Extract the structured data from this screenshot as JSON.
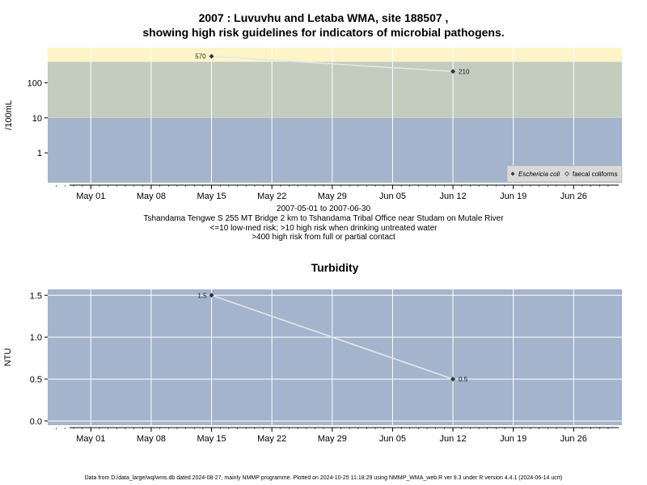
{
  "title_line1": "2007 : Luvuvhu and Letaba WMA, site 188507 ,",
  "title_line2": "showing high risk guidelines for indicators of microbial pathogens.",
  "caption": {
    "range": "2007-05-01 to 2007-06-30",
    "site": "Tshandama Tengwe S 255 MT Bridge 2 km to Tshandama Tribal Office near Studam on Mutale River",
    "risk1": "<=10 low-med risk; >10 high risk when drinking untreated water",
    "risk2": ">400 high risk from full or partial contact"
  },
  "footer": "Data from D:/data_large/wq/wms.db dated 2024-08-27, mainly NMMP programme. Plotted on 2024-10-25 11:18:29 using NMMP_WMA_web.R ver 9.3 under R version 4.4.1 (2024-06-14 ucrt)",
  "colors": {
    "band_low": "#a4b4cc",
    "band_mid": "#c4ccc0",
    "band_high": "#fdf5c8",
    "grid": "#ffffff",
    "line": "#e6e6e6",
    "point": "#333333"
  },
  "chart_data": [
    {
      "type": "line",
      "title": "",
      "ylabel": "/100mL",
      "yscale": "log",
      "x_tick_labels": [
        "May 01",
        "May 08",
        "May 15",
        "May 22",
        "May 29",
        "Jun 05",
        "Jun 12",
        "Jun 19",
        "Jun 26"
      ],
      "x_tick_dates": [
        "2007-05-01",
        "2007-05-08",
        "2007-05-15",
        "2007-05-22",
        "2007-05-29",
        "2007-06-05",
        "2007-06-12",
        "2007-06-19",
        "2007-06-26"
      ],
      "y_tick_labels": [
        "1",
        "10",
        "100"
      ],
      "bands": [
        {
          "from": 0.1,
          "to": 10,
          "meaning": "low-med risk"
        },
        {
          "from": 10,
          "to": 400,
          "meaning": "high risk when drinking untreated water"
        },
        {
          "from": 400,
          "to": 1000,
          "meaning": "high risk from full or partial contact"
        }
      ],
      "series": [
        {
          "name": "Eschericia coli",
          "marker": "filled-diamond",
          "points": [
            {
              "x": "2007-05-15",
              "y": 570,
              "label": "570"
            },
            {
              "x": "2007-06-12",
              "y": 210,
              "label": "210"
            }
          ]
        },
        {
          "name": "faecal coliforms",
          "marker": "open-diamond",
          "points": []
        }
      ],
      "legend_position": "bottom-right"
    },
    {
      "type": "line",
      "title": "Turbidity",
      "ylabel": "NTU",
      "x_tick_labels": [
        "May 01",
        "May 08",
        "May 15",
        "May 22",
        "May 29",
        "Jun 05",
        "Jun 12",
        "Jun 19",
        "Jun 26"
      ],
      "x_tick_dates": [
        "2007-05-01",
        "2007-05-08",
        "2007-05-15",
        "2007-05-22",
        "2007-05-29",
        "2007-06-05",
        "2007-06-12",
        "2007-06-19",
        "2007-06-26"
      ],
      "y_tick_labels": [
        "0.0",
        "0.5",
        "1.0",
        "1.5"
      ],
      "ylim": [
        -0.05,
        1.57
      ],
      "series": [
        {
          "points": [
            {
              "x": "2007-05-15",
              "y": 1.5,
              "label": "1.5"
            },
            {
              "x": "2007-06-12",
              "y": 0.5,
              "label": "0.5"
            }
          ]
        }
      ]
    }
  ]
}
